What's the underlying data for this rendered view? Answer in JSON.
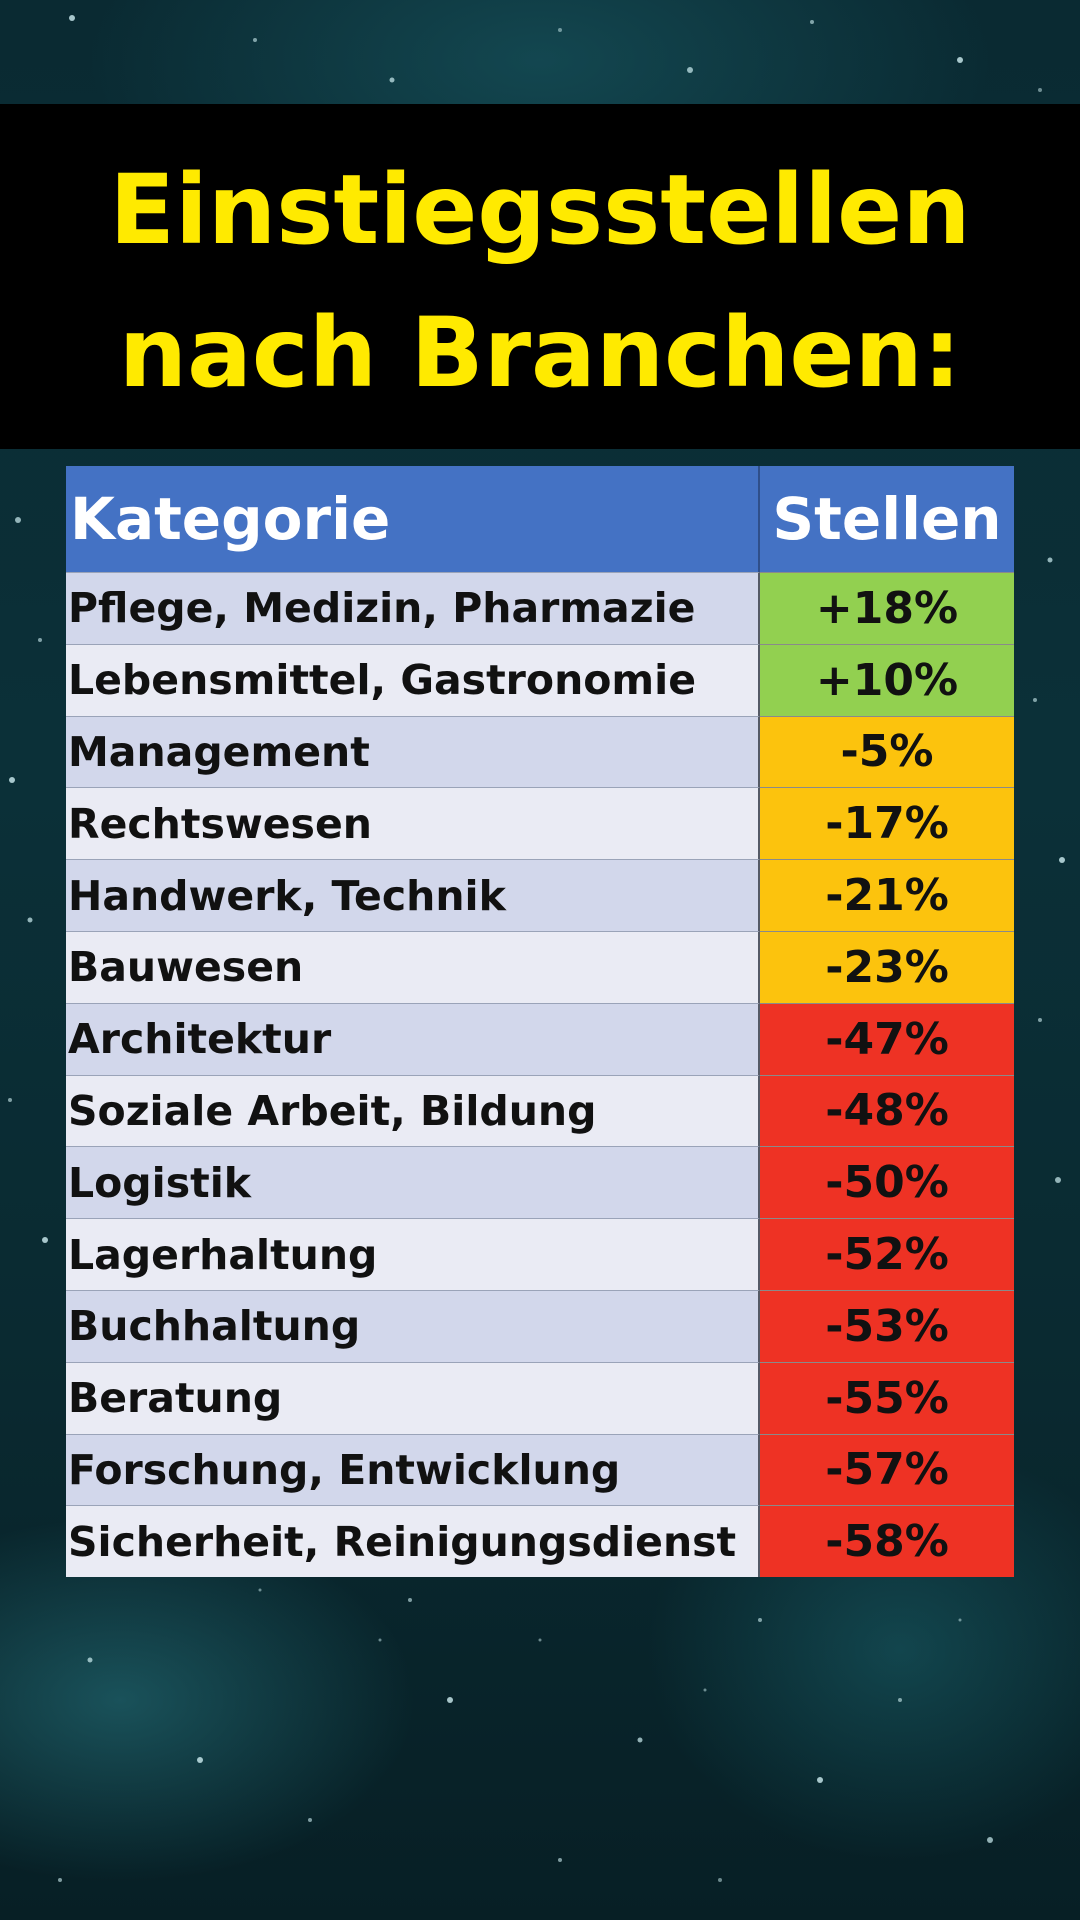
{
  "title": {
    "line1": "Einstiegsstellen",
    "line2": "nach Branchen:"
  },
  "colors": {
    "title_text": "#ffea00",
    "header_bg": "#4472c4",
    "positive": "#92d050",
    "moderate_decline": "#fcc30d",
    "strong_decline": "#ee3224"
  },
  "chart_data": {
    "type": "table",
    "columns": [
      "Kategorie",
      "Stellen"
    ],
    "rows": [
      {
        "category": "Pflege, Medizin, Pharmazie",
        "value": "+18%",
        "color": "#92d050"
      },
      {
        "category": "Lebensmittel, Gastronomie",
        "value": "+10%",
        "color": "#92d050"
      },
      {
        "category": "Management",
        "value": "-5%",
        "color": "#fcc30d"
      },
      {
        "category": "Rechtswesen",
        "value": "-17%",
        "color": "#fcc30d"
      },
      {
        "category": "Handwerk, Technik",
        "value": "-21%",
        "color": "#fcc30d"
      },
      {
        "category": "Bauwesen",
        "value": "-23%",
        "color": "#fcc30d"
      },
      {
        "category": "Architektur",
        "value": "-47%",
        "color": "#ee3224"
      },
      {
        "category": "Soziale Arbeit, Bildung",
        "value": "-48%",
        "color": "#ee3224"
      },
      {
        "category": "Logistik",
        "value": "-50%",
        "color": "#ee3224"
      },
      {
        "category": "Lagerhaltung",
        "value": "-52%",
        "color": "#ee3224"
      },
      {
        "category": "Buchhaltung",
        "value": "-53%",
        "color": "#ee3224"
      },
      {
        "category": "Beratung",
        "value": "-55%",
        "color": "#ee3224"
      },
      {
        "category": "Forschung, Entwicklung",
        "value": "-57%",
        "color": "#ee3224"
      },
      {
        "category": "Sicherheit, Reinigungsdienst",
        "value": "-58%",
        "color": "#ee3224"
      }
    ]
  }
}
